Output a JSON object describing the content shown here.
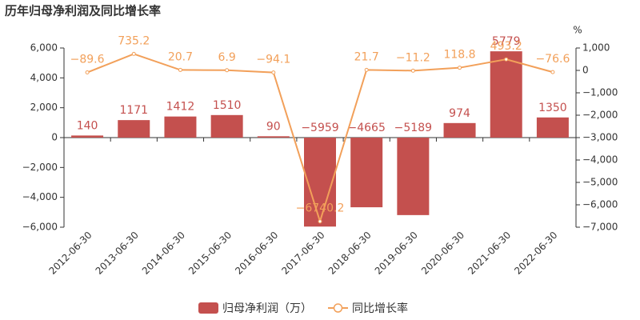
{
  "chart_data": {
    "type": "bar_line",
    "title": "历年归母净利润及同比增长率",
    "y2_unit": "%",
    "categories": [
      "2012-06-30",
      "2013-06-30",
      "2014-06-30",
      "2015-06-30",
      "2016-06-30",
      "2017-06-30",
      "2018-06-30",
      "2019-06-30",
      "2020-06-30",
      "2021-06-30",
      "2022-06-30"
    ],
    "series": [
      {
        "name": "归母净利润（万）",
        "type": "bar",
        "color": "#c4504e",
        "values": [
          140,
          1171,
          1412,
          1510,
          90,
          -5959,
          -4665,
          -5189,
          974,
          5779,
          1350
        ],
        "value_labels": [
          "140",
          "1171",
          "1412",
          "1510",
          "90",
          "−5959",
          "−4665",
          "−5189",
          "974",
          "5779",
          "1350"
        ]
      },
      {
        "name": "同比增长率",
        "type": "line",
        "axis": "y2",
        "color": "#f2a05a",
        "values": [
          -89.6,
          735.2,
          20.7,
          6.9,
          -94.1,
          -6740.2,
          21.7,
          -11.2,
          118.8,
          493.2,
          -76.6
        ],
        "value_labels": [
          "−89.6",
          "735.2",
          "20.7",
          "6.9",
          "−94.1",
          "−6740.2",
          "21.7",
          "−11.2",
          "118.8",
          "493.2",
          "−76.6"
        ]
      }
    ],
    "ylim": [
      -6000,
      6000
    ],
    "yticks": [
      {
        "value": -6000,
        "label": "−6,000"
      },
      {
        "value": -4000,
        "label": "−4,000"
      },
      {
        "value": -2000,
        "label": "−2,000"
      },
      0,
      {
        "value": 2000,
        "label": "2,000"
      },
      {
        "value": 4000,
        "label": "4,000"
      },
      {
        "value": 6000,
        "label": "6,000"
      }
    ],
    "y2lim": [
      -7000,
      1000
    ],
    "y2ticks": [
      {
        "value": -7000,
        "label": "−7,000"
      },
      {
        "value": -6000,
        "label": "−6,000"
      },
      {
        "value": -5000,
        "label": "−5,000"
      },
      {
        "value": -4000,
        "label": "−4,000"
      },
      {
        "value": -3000,
        "label": "−3,000"
      },
      {
        "value": -2000,
        "label": "−2,000"
      },
      {
        "value": -1000,
        "label": "−1,000"
      },
      0,
      {
        "value": 1000,
        "label": "1,000"
      }
    ],
    "grid": false
  }
}
